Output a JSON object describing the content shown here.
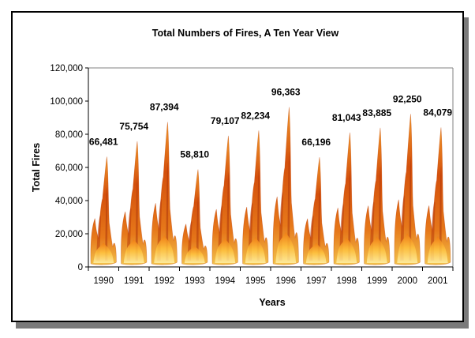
{
  "chart_data": {
    "type": "bar",
    "title": "Total Numbers of Fires, A Ten Year View",
    "xlabel": "Years",
    "ylabel": "Total Fires",
    "categories": [
      "1990",
      "1991",
      "1992",
      "1993",
      "1994",
      "1995",
      "1996",
      "1997",
      "1998",
      "1999",
      "2000",
      "2001"
    ],
    "values": [
      66481,
      75754,
      87394,
      58810,
      79107,
      82234,
      96363,
      66196,
      81043,
      83885,
      92250,
      84079
    ],
    "value_labels": [
      "66,481",
      "75,754",
      "87,394",
      "58,810",
      "79,107",
      "82,234",
      "96,363",
      "66,196",
      "81,043",
      "83,885",
      "92,250",
      "84,079"
    ],
    "ylim": [
      0,
      120000
    ],
    "yticks": [
      0,
      20000,
      40000,
      60000,
      80000,
      100000,
      120000
    ],
    "ytick_labels": [
      "0",
      "20,000",
      "40,000",
      "60,000",
      "80,000",
      "100,000",
      "120,000"
    ],
    "grid": false,
    "legend": "none",
    "bar_style": "flame-picture",
    "colors": {
      "flame_outer": "#c0410a",
      "flame_mid": "#f07a12",
      "flame_core": "#ffd24a",
      "axis": "#808080"
    }
  }
}
